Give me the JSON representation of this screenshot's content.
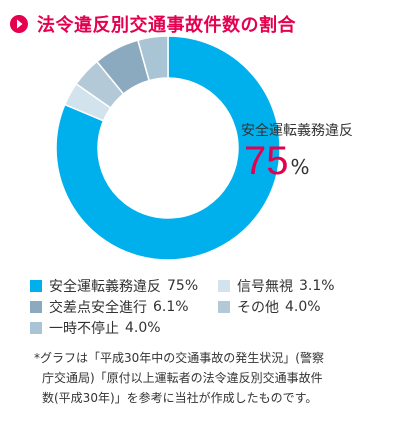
{
  "header": {
    "title": "法令違反別交通事故件数の割合"
  },
  "colors": {
    "accent": "#e5004f",
    "slices": [
      "#00b0ec",
      "#d3e3ee",
      "#8baabf",
      "#b3c9d8",
      "#a8c4d5"
    ]
  },
  "chart_data": {
    "type": "pie",
    "variant": "donut",
    "title": "法令違反別交通事故件数の割合",
    "unit": "%",
    "categories": [
      "安全運転義務違反",
      "信号無視",
      "交差点安全進行",
      "その他",
      "一時不停止"
    ],
    "values": [
      75,
      3.1,
      6.1,
      4.0,
      4.0
    ],
    "callout": {
      "label": "安全運転義務違反",
      "value": "75",
      "unit": "%"
    },
    "legend_placement": "bottom"
  },
  "legend": [
    {
      "label": "安全運転義務違反",
      "value": "75%"
    },
    {
      "label": "信号無視",
      "value": "3.1%"
    },
    {
      "label": "交差点安全進行",
      "value": "6.1%"
    },
    {
      "label": "その他",
      "value": "4.0%"
    },
    {
      "label": "一時不停止",
      "value": "4.0%"
    }
  ],
  "footnote": {
    "lines": [
      "*グラフは「平成30年中の交通事故の発生状況」(警察",
      "庁交通局)「原付以上運転者の法令違反別交通事故件",
      "数(平成30年)」を参考に当社が作成したものです。"
    ]
  }
}
